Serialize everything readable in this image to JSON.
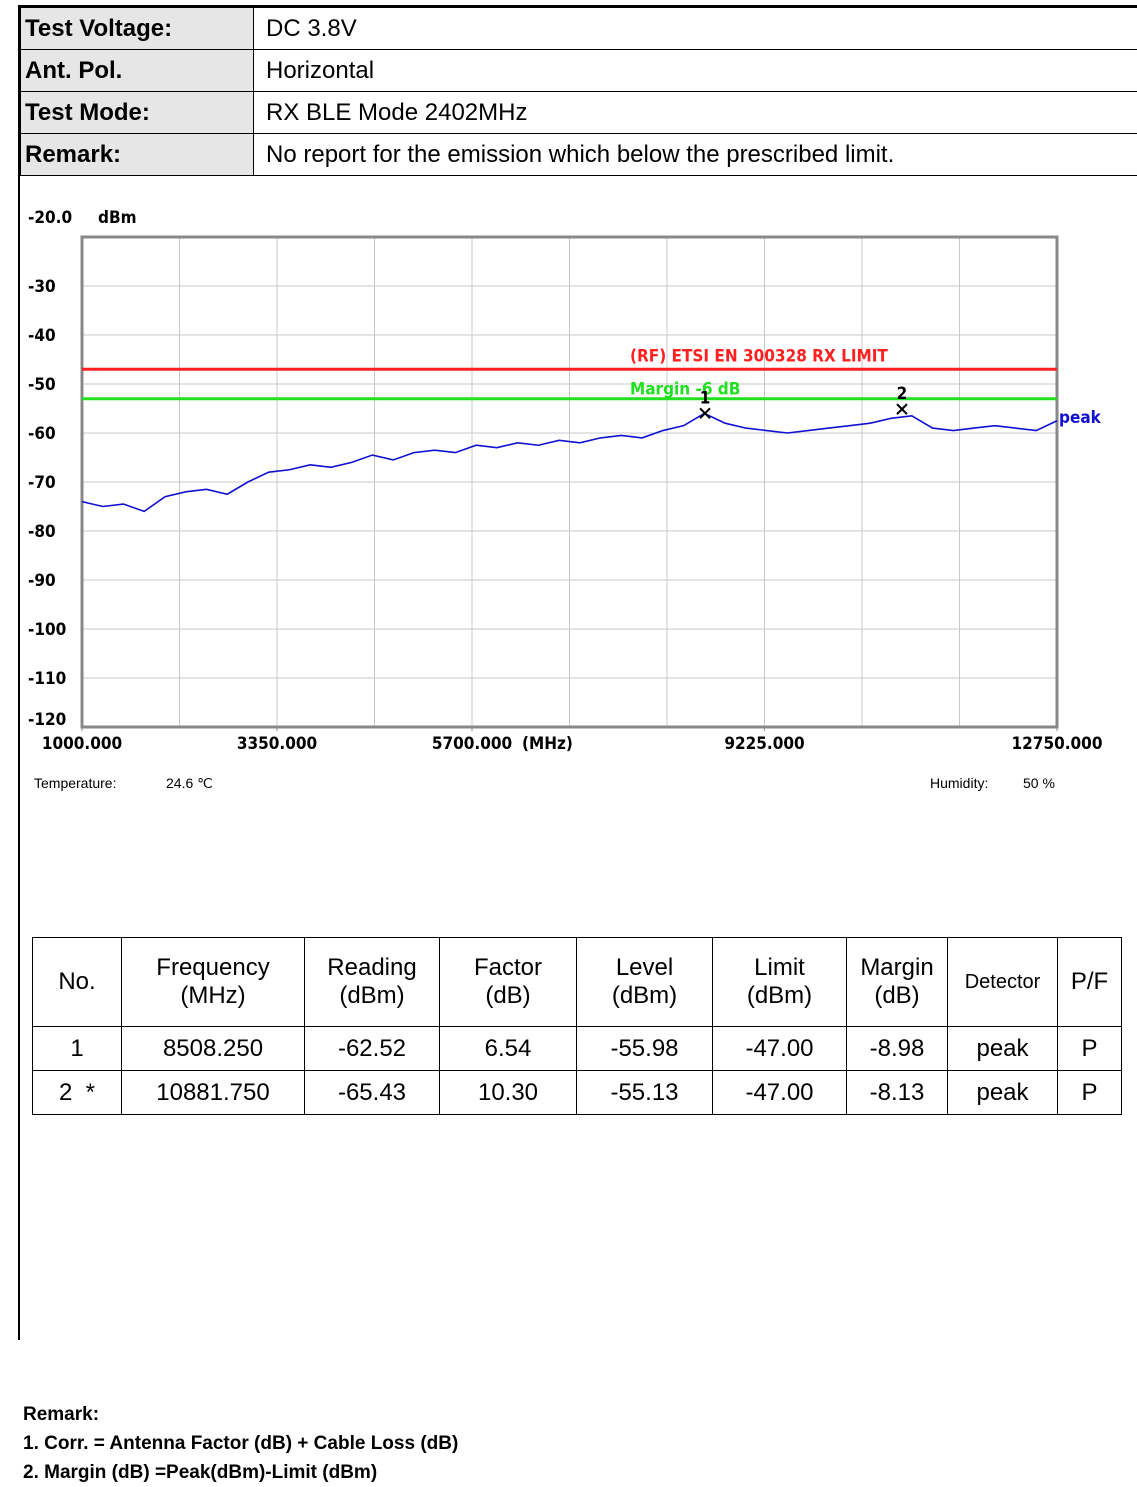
{
  "header": {
    "rows": [
      [
        "Test Voltage:",
        "DC 3.8V"
      ],
      [
        "Ant. Pol.",
        "Horizontal"
      ],
      [
        "Test Mode:",
        "RX BLE Mode 2402MHz"
      ],
      [
        "Remark:",
        "No report for the emission which below the prescribed limit."
      ]
    ]
  },
  "chart_data": {
    "type": "line",
    "y_unit": "dBm",
    "x_unit": "(MHz)",
    "xlim": [
      1000,
      12750
    ],
    "xticks": [
      {
        "value": 1000,
        "label": "1000.000"
      },
      {
        "value": 3350,
        "label": "3350.000"
      },
      {
        "value": 5700,
        "label": "5700.000"
      },
      {
        "value": 9225,
        "label": "9225.000"
      },
      {
        "value": 12750,
        "label": "12750.000"
      }
    ],
    "ylim": [
      -120,
      -20
    ],
    "yticks": [
      {
        "value": -20,
        "label": "-20.0"
      },
      -30,
      -40,
      -50,
      -60,
      -70,
      -80,
      -90,
      -100,
      -110,
      -120
    ],
    "grid": true,
    "limit_lines": [
      {
        "label": "(RF) ETSI EN 300328  RX LIMIT",
        "value": -47,
        "color": "#ff2020"
      },
      {
        "label": "Margin -6 dB",
        "value": -53,
        "color": "#20e020"
      }
    ],
    "series": [
      {
        "name": "peak",
        "color": "#1010d0",
        "x": [
          1000,
          1250,
          1500,
          1750,
          2000,
          2250,
          2500,
          2750,
          3000,
          3250,
          3500,
          3750,
          4000,
          4250,
          4500,
          4750,
          5000,
          5250,
          5500,
          5750,
          6000,
          6250,
          6500,
          6750,
          7000,
          7250,
          7500,
          7750,
          8000,
          8250,
          8500,
          8750,
          9000,
          9250,
          9500,
          9750,
          10000,
          10250,
          10500,
          10750,
          11000,
          11250,
          11500,
          11750,
          12000,
          12250,
          12500,
          12750
        ],
        "values": [
          -74,
          -75,
          -74.5,
          -76,
          -73,
          -72,
          -71.5,
          -72.5,
          -70,
          -68,
          -67.5,
          -66.5,
          -67,
          -66,
          -64.5,
          -65.5,
          -64,
          -63.5,
          -64,
          -62.5,
          -63,
          -62,
          -62.5,
          -61.5,
          -62,
          -61,
          -60.5,
          -61,
          -59.5,
          -58.5,
          -56,
          -58,
          -59,
          -59.5,
          -60,
          -59.5,
          -59,
          -58.5,
          -58,
          -57,
          -56.5,
          -59,
          -59.5,
          -59,
          -58.5,
          -59,
          -59.5,
          -57.5
        ]
      }
    ],
    "markers": [
      {
        "label": "1",
        "x": 8508.25,
        "y": -55.98
      },
      {
        "label": "2",
        "x": 10881.75,
        "y": -55.13
      }
    ]
  },
  "environment": {
    "temperature_label": "Temperature:",
    "temperature": "24.6 ℃",
    "humidity_label": "Humidity:",
    "humidity": "50 %"
  },
  "table": {
    "header": [
      "No.",
      "Frequency\n(MHz)",
      "Reading\n(dBm)",
      "Factor\n(dB)",
      "Level\n(dBm)",
      "Limit\n(dBm)",
      "Margin\n(dB)",
      "Detector",
      "P/F"
    ],
    "rows": [
      [
        "1",
        "8508.250",
        "-62.52",
        "6.54",
        "-55.98",
        "-47.00",
        "-8.98",
        "peak",
        "P"
      ],
      [
        "2  *",
        "10881.750",
        "-65.43",
        "10.30",
        "-55.13",
        "-47.00",
        "-8.13",
        "peak",
        "P"
      ]
    ]
  },
  "remarks": [
    "Remark:",
    "1. Corr. = Antenna Factor (dB) + Cable Loss (dB)",
    "2. Margin (dB) =Peak(dBm)-Limit (dBm)"
  ]
}
